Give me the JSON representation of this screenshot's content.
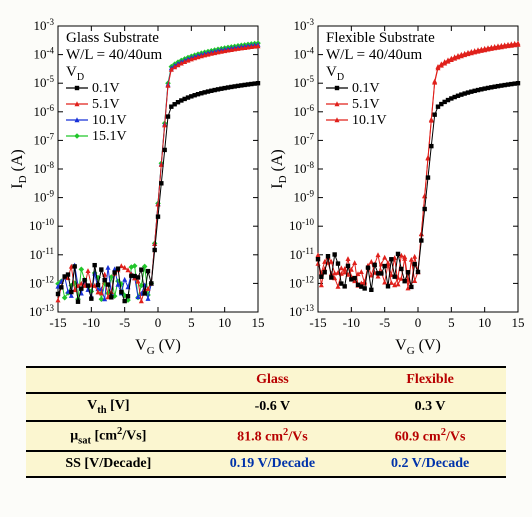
{
  "charts": [
    {
      "title": "Glass Substrate",
      "wl": "W/L = 40/40um",
      "vd_label": "V",
      "vd_sub": "D",
      "ylabel": "I",
      "ylabel_sub": "D",
      "ylabel_unit": " (A)",
      "xlabel": "V",
      "xlabel_sub": "G",
      "xlabel_unit": " (V)",
      "xlim": [
        -15,
        15
      ],
      "xtick_step": 5,
      "ylim_exp": [
        -13,
        -3
      ],
      "ytick_step_exp": 1,
      "bg": "#ffffff",
      "series": [
        {
          "label": "0.1V",
          "color": "#000000",
          "marker": "square"
        },
        {
          "label": "5.1V",
          "color": "#e0201b",
          "marker": "triangle"
        },
        {
          "label": "10.1V",
          "color": "#1730d8",
          "marker": "triangle"
        },
        {
          "label": "15.1V",
          "color": "#21c62b",
          "marker": "diamond"
        }
      ],
      "curve_off_exp": -12,
      "rise_x": -1,
      "rise_x_end": 2,
      "saturation_low_exp": -5,
      "saturation_high_exp": -3.6
    },
    {
      "title": "Flexible Substrate",
      "wl": "W/L = 40/40um",
      "vd_label": "V",
      "vd_sub": "D",
      "ylabel": "I",
      "ylabel_sub": "D",
      "ylabel_unit": " (A)",
      "xlabel": "V",
      "xlabel_sub": "G",
      "xlabel_unit": " (V)",
      "xlim": [
        -15,
        15
      ],
      "xtick_step": 5,
      "ylim_exp": [
        -13,
        -3
      ],
      "ytick_step_exp": 1,
      "bg": "#ffffff",
      "series": [
        {
          "label": "0.1V",
          "color": "#000000",
          "marker": "square"
        },
        {
          "label": "5.1V",
          "color": "#e0201b",
          "marker": "triangle"
        },
        {
          "label": "10.1V",
          "color": "#e0201b",
          "marker": "triangle"
        }
      ],
      "curve_off_exp": -11.6,
      "rise_x": 0,
      "rise_x_end": 3,
      "saturation_low_exp": -5,
      "saturation_high_exp": -3.6
    }
  ],
  "table": {
    "columns": [
      "",
      "Glass",
      "Flexible"
    ],
    "rows": [
      {
        "param": "Vth_V",
        "values": [
          "-0.6 V",
          "0.3 V"
        ],
        "style": "plain"
      },
      {
        "param": "musat_cm2Vs",
        "values": [
          "81.8 cm2/Vs",
          "60.9 cm2/Vs"
        ],
        "style": "red"
      },
      {
        "param": "SS_VDecade",
        "values": [
          "0.19 V/Decade",
          "0.2 V/Decade"
        ],
        "style": "blue"
      }
    ],
    "labels": {
      "Vth_V": "V<sub>th</sub>  [V]",
      "musat_cm2Vs": "&mu;<sub>sat</sub>  [cm<sup>2</sup>/Vs]",
      "SS_VDecade": "SS  [V/Decade]"
    },
    "cell_override": {
      "1,0": "81.8 cm<sup>2</sup>/Vs",
      "1,1": "60.9 cm<sup>2</sup>/Vs"
    }
  }
}
